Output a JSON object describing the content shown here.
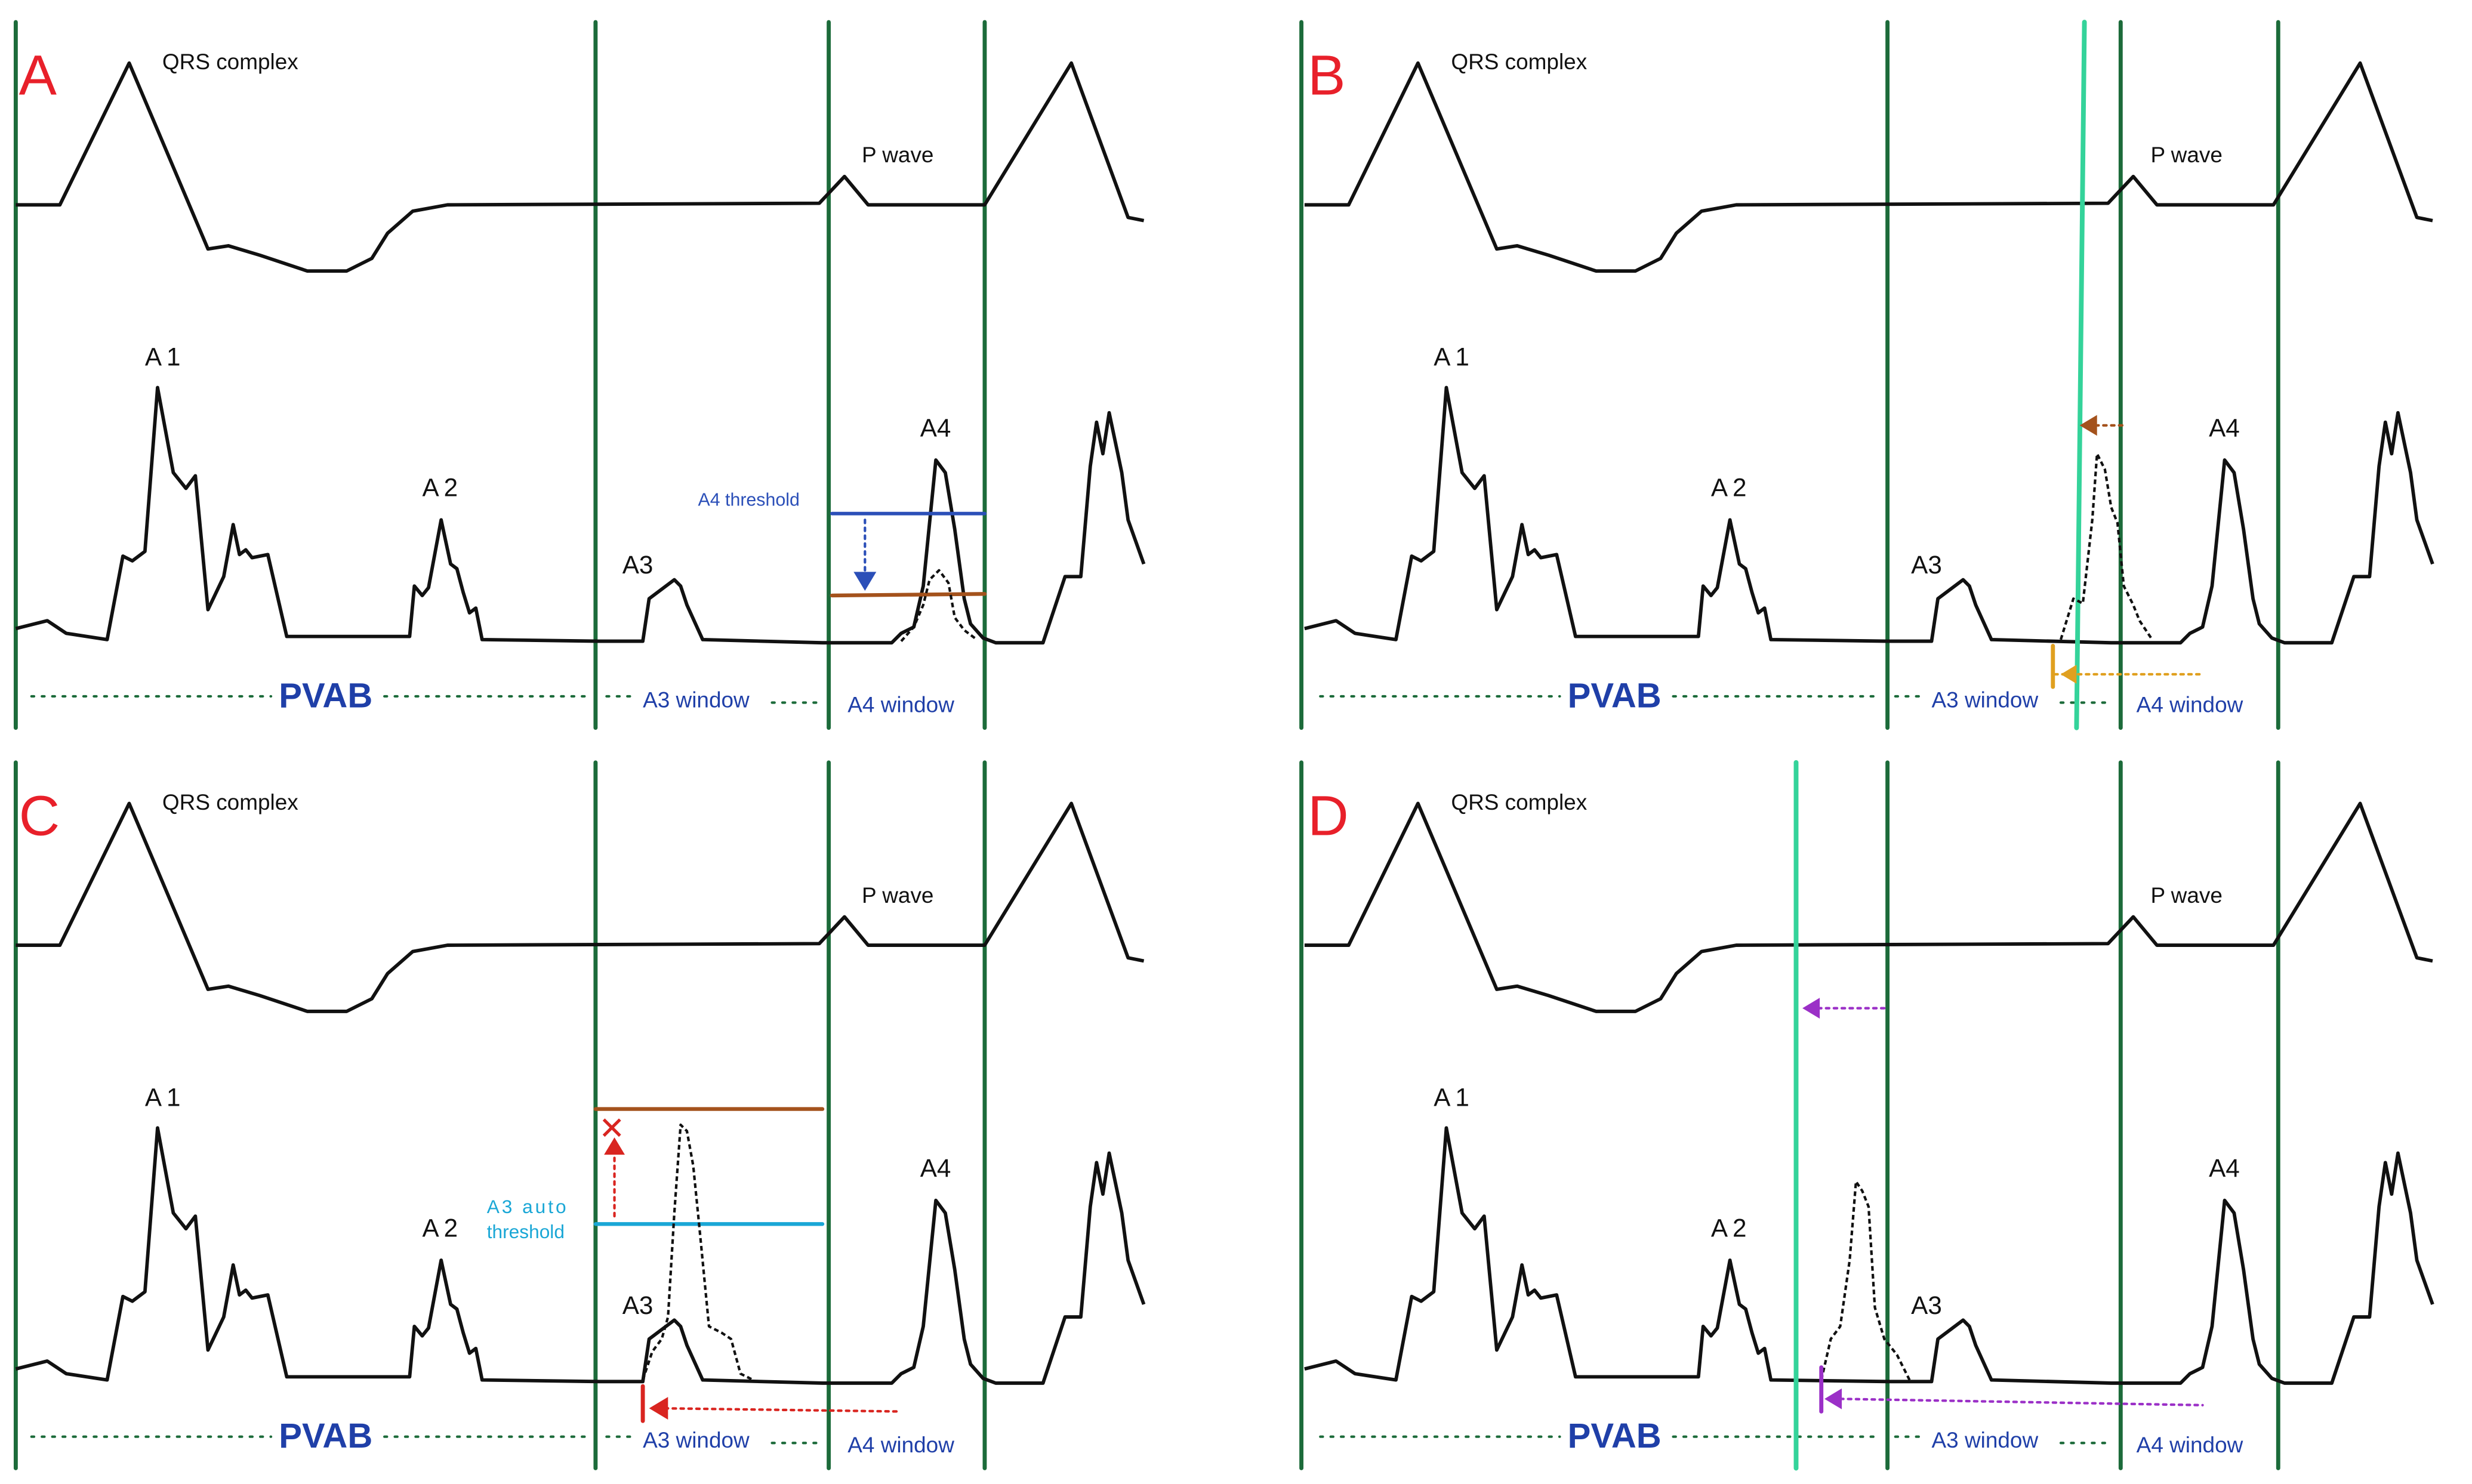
{
  "colors": {
    "panel_letter": "#e8202a",
    "window_line": "#1c6b3a",
    "shift_line": "#34d39a",
    "trace": "#111111",
    "pvab_label": "#1f3fa8",
    "window_label": "#1f3fa8",
    "dots": "#1c6b3a",
    "a4_threshold": "#2b4fb8",
    "a4_threshold_label": "#2b4fb8",
    "brown_level": "#a4521c",
    "a3_threshold": "#1aa7d6",
    "red_arrow": "#d92520",
    "orange_arrow": "#e0a020",
    "brown_arrow": "#a4521c",
    "purple_arrow": "#9b30c7"
  },
  "panels": [
    {
      "letter": "A",
      "qrs_label": "QRS complex",
      "p_wave_label": "P wave",
      "peaks": {
        "a1": "A1",
        "a2": "A2",
        "a3": "A3",
        "a4": "A4"
      },
      "pvab_label": "PVAB",
      "a3_window_label": "A3 window",
      "a4_window_label": "A4 window",
      "a4_threshold_label": "A4 threshold"
    },
    {
      "letter": "B",
      "qrs_label": "QRS complex",
      "p_wave_label": "P wave",
      "peaks": {
        "a1": "A1",
        "a2": "A2",
        "a3": "A3",
        "a4": "A4"
      },
      "pvab_label": "PVAB",
      "a3_window_label": "A3 window",
      "a4_window_label": "A4 window"
    },
    {
      "letter": "C",
      "qrs_label": "QRS complex",
      "p_wave_label": "P wave",
      "peaks": {
        "a1": "A1",
        "a2": "A2",
        "a3": "A3",
        "a4": "A4"
      },
      "pvab_label": "PVAB",
      "a3_window_label": "A3 window",
      "a4_window_label": "A4 window",
      "a3_threshold_label_1": "A3  auto",
      "a3_threshold_label_2": "threshold",
      "blocked_mark": "✕"
    },
    {
      "letter": "D",
      "qrs_label": "QRS complex",
      "p_wave_label": "P wave",
      "peaks": {
        "a1": "A1",
        "a2": "A2",
        "a3": "A3",
        "a4": "A4"
      },
      "pvab_label": "PVAB",
      "a3_window_label": "A3 window",
      "a4_window_label": "A4 window"
    }
  ]
}
